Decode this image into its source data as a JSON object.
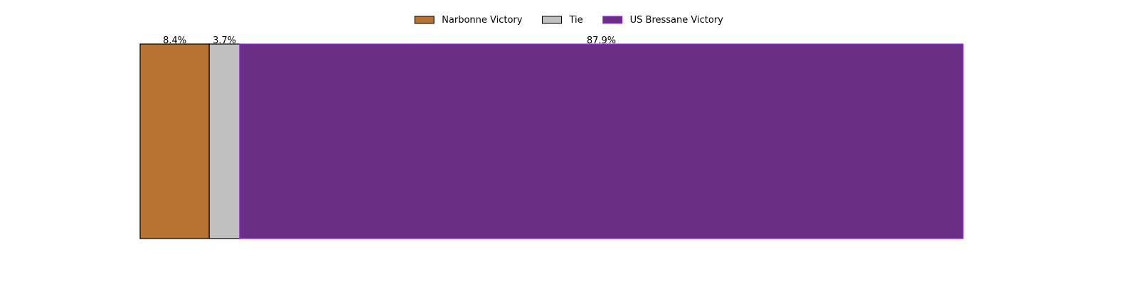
{
  "chart_data": {
    "type": "bar",
    "orientation": "horizontal-stacked",
    "categories": [
      "Narbonne Victory",
      "Tie",
      "US Bressane Victory"
    ],
    "values": [
      8.4,
      3.7,
      87.9
    ],
    "value_labels": [
      "8.4%",
      "3.7%",
      "87.9%"
    ],
    "colors": [
      "#b87333",
      "#c0c0c0",
      "#6a2f84"
    ],
    "edge_colors": [
      "#000000",
      "#000000",
      "#a020f0"
    ],
    "legend_position": "top-center",
    "grid": false,
    "axes_visible": false,
    "xlim": [
      0,
      100
    ]
  }
}
